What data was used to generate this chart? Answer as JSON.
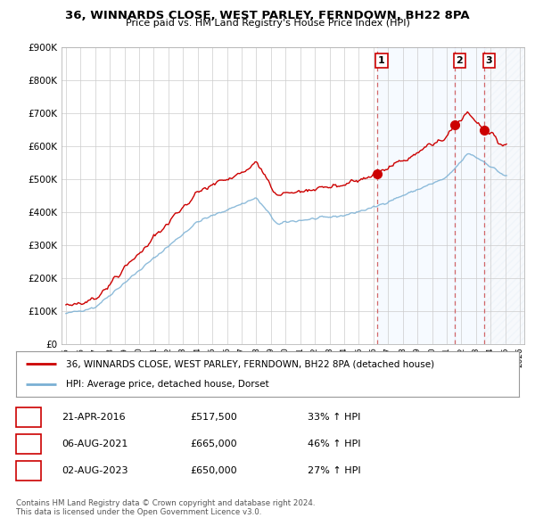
{
  "title": "36, WINNARDS CLOSE, WEST PARLEY, FERNDOWN, BH22 8PA",
  "subtitle": "Price paid vs. HM Land Registry's House Price Index (HPI)",
  "ylim": [
    0,
    900000
  ],
  "yticks": [
    0,
    100000,
    200000,
    300000,
    400000,
    500000,
    600000,
    700000,
    800000,
    900000
  ],
  "ytick_labels": [
    "£0",
    "£100K",
    "£200K",
    "£300K",
    "£400K",
    "£500K",
    "£600K",
    "£700K",
    "£800K",
    "£900K"
  ],
  "house_color": "#cc0000",
  "hpi_color": "#7ab0d4",
  "dashed_color": "#cc4444",
  "fill_color": "#ddeeff",
  "legend_house": "36, WINNARDS CLOSE, WEST PARLEY, FERNDOWN, BH22 8PA (detached house)",
  "legend_hpi": "HPI: Average price, detached house, Dorset",
  "purchases": [
    {
      "label": "1",
      "price": 517500,
      "x_year": 2016.25
    },
    {
      "label": "2",
      "price": 665000,
      "x_year": 2021.58
    },
    {
      "label": "3",
      "price": 650000,
      "x_year": 2023.58
    }
  ],
  "table_rows": [
    [
      "1",
      "21-APR-2016",
      "£517,500",
      "33% ↑ HPI"
    ],
    [
      "2",
      "06-AUG-2021",
      "£665,000",
      "46% ↑ HPI"
    ],
    [
      "3",
      "02-AUG-2023",
      "£650,000",
      "27% ↑ HPI"
    ]
  ],
  "footer": "Contains HM Land Registry data © Crown copyright and database right 2024.\nThis data is licensed under the Open Government Licence v3.0.",
  "background_color": "#ffffff",
  "grid_color": "#cccccc",
  "xlim_start": 1994.7,
  "xlim_end": 2026.3
}
